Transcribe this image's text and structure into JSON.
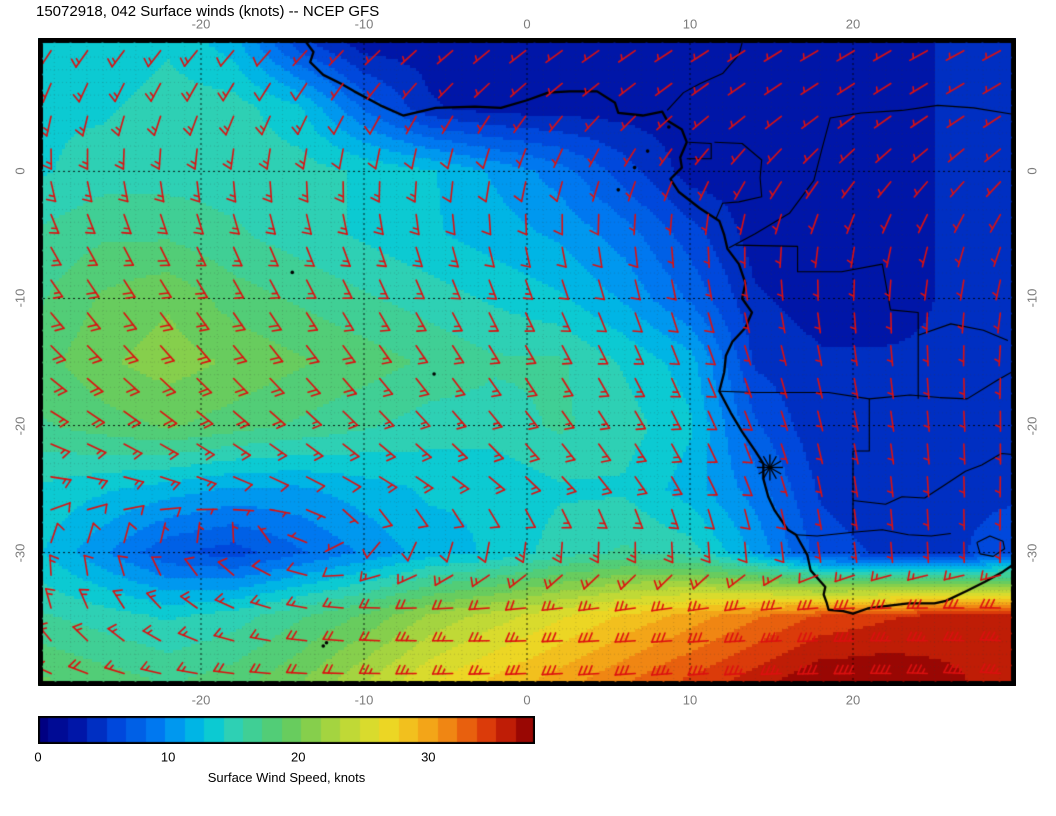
{
  "page": {
    "title": "15072918, 042 Surface winds (knots) -- NCEP GFS"
  },
  "chart_data": {
    "type": "heatmap",
    "title": "15072918, 042 Surface winds (knots) -- NCEP GFS",
    "projection": "lat-lon",
    "lon_range": [
      -30,
      30
    ],
    "lat_range": [
      -40.5,
      10.5
    ],
    "lon_ticks": [
      -20,
      -10,
      0,
      10,
      20
    ],
    "lat_ticks": [
      0,
      -10,
      -20,
      -30
    ],
    "tick_label_color": "#7b7b7b",
    "grid_lons": [
      -30,
      -26,
      -22,
      -18,
      -14,
      -10,
      -6,
      -2,
      2,
      6,
      10,
      14,
      18,
      22,
      26,
      30
    ],
    "grid_lats": [
      10,
      5,
      0,
      -5,
      -10,
      -15,
      -20,
      -25,
      -30,
      -35,
      -40
    ],
    "speed_knots": [
      [
        13,
        13,
        14,
        12,
        6,
        3,
        3,
        3,
        3,
        3,
        3,
        3,
        3,
        3,
        4,
        4
      ],
      [
        14,
        14,
        15,
        15,
        13,
        8,
        4,
        3,
        3,
        3,
        3,
        3,
        3,
        3,
        4,
        4
      ],
      [
        14,
        15,
        15,
        15,
        15,
        14,
        13,
        11,
        9,
        6,
        3,
        3,
        3,
        3,
        4,
        4
      ],
      [
        16,
        17,
        17,
        16,
        15,
        14,
        13,
        12,
        11,
        9,
        6,
        3,
        3,
        3,
        4,
        4
      ],
      [
        17,
        19,
        20,
        18,
        17,
        16,
        15,
        14,
        13,
        11,
        8,
        4,
        3,
        3,
        4,
        4
      ],
      [
        18,
        20,
        21,
        20,
        19,
        18,
        17,
        16,
        16,
        14,
        12,
        5,
        4,
        4,
        4,
        5
      ],
      [
        17,
        18,
        19,
        18,
        17,
        16,
        15,
        15,
        16,
        15,
        13,
        7,
        4,
        4,
        5,
        5
      ],
      [
        14,
        13,
        12,
        11,
        11,
        12,
        13,
        13,
        14,
        14,
        12,
        9,
        5,
        4,
        5,
        5
      ],
      [
        13,
        10,
        7,
        6,
        8,
        10,
        12,
        13,
        15,
        16,
        15,
        11,
        6,
        5,
        5,
        6
      ],
      [
        16,
        15,
        14,
        15,
        17,
        19,
        22,
        24,
        26,
        28,
        30,
        32,
        34,
        35,
        36,
        36
      ],
      [
        19,
        18,
        17,
        18,
        20,
        23,
        26,
        28,
        30,
        32,
        34,
        36,
        38,
        38,
        37,
        36
      ]
    ],
    "direction_toward_deg": [
      [
        35,
        38,
        40,
        42,
        45,
        48,
        50,
        52,
        55,
        56,
        58,
        58,
        60,
        60,
        62,
        62
      ],
      [
        15,
        18,
        22,
        26,
        30,
        35,
        40,
        44,
        48,
        50,
        52,
        54,
        55,
        56,
        58,
        58
      ],
      [
        350,
        352,
        355,
        358,
        0,
        4,
        8,
        14,
        20,
        26,
        32,
        36,
        40,
        44,
        46,
        48
      ],
      [
        332,
        334,
        336,
        338,
        340,
        343,
        346,
        349,
        352,
        356,
        0,
        5,
        10,
        14,
        18,
        22
      ],
      [
        322,
        324,
        326,
        328,
        330,
        332,
        334,
        336,
        338,
        342,
        346,
        350,
        355,
        0,
        5,
        10
      ],
      [
        312,
        314,
        316,
        318,
        320,
        322,
        324,
        327,
        330,
        334,
        338,
        343,
        348,
        353,
        358,
        3
      ],
      [
        298,
        302,
        305,
        308,
        310,
        313,
        316,
        319,
        323,
        328,
        334,
        340,
        346,
        351,
        356,
        0
      ],
      [
        272,
        277,
        282,
        287,
        292,
        297,
        302,
        308,
        315,
        323,
        332,
        341,
        349,
        354,
        358,
        2
      ],
      [
        188,
        182,
        174,
        158,
        120,
        60,
        32,
        20,
        12,
        6,
        0,
        356,
        352,
        355,
        358,
        2
      ],
      [
        165,
        150,
        132,
        112,
        100,
        95,
        92,
        90,
        88,
        87,
        86,
        86,
        87,
        89,
        91,
        93
      ],
      [
        112,
        106,
        100,
        96,
        93,
        91,
        89,
        88,
        87,
        86,
        86,
        87,
        89,
        91,
        93,
        95
      ]
    ],
    "colormap": [
      [
        0,
        "#000082"
      ],
      [
        3,
        "#0016a8"
      ],
      [
        6,
        "#0048dc"
      ],
      [
        9,
        "#0078f0"
      ],
      [
        11,
        "#00a2ee"
      ],
      [
        13,
        "#00c8dc"
      ],
      [
        15,
        "#2ed0b4"
      ],
      [
        17,
        "#46cf8a"
      ],
      [
        19,
        "#5ecb64"
      ],
      [
        21,
        "#86cf4c"
      ],
      [
        23,
        "#aed63c"
      ],
      [
        25,
        "#d2dc30"
      ],
      [
        27,
        "#ecd624"
      ],
      [
        29,
        "#f4b81c"
      ],
      [
        31,
        "#f29214"
      ],
      [
        33,
        "#e8600e"
      ],
      [
        35,
        "#d62f08"
      ],
      [
        37,
        "#a80b04"
      ],
      [
        38.5,
        "#7c0000"
      ]
    ],
    "colorbar": {
      "min": 0,
      "max": 38.2,
      "ticks": [
        0,
        10,
        20,
        30
      ],
      "label": "Surface Wind Speed, knots"
    },
    "wind_barbs": {
      "color": "#dc1010",
      "lon_start": -29.2,
      "lon_step": 2.24,
      "cols": 27,
      "lat_start": 9.5,
      "lat_step": 2.58,
      "rows": 20
    },
    "coastline": [
      [
        -13.8,
        10.6
      ],
      [
        -13.1,
        9.4
      ],
      [
        -13.3,
        8.6
      ],
      [
        -12.5,
        7.6
      ],
      [
        -11.4,
        6.9
      ],
      [
        -10.6,
        6.3
      ],
      [
        -9.0,
        5.2
      ],
      [
        -7.6,
        4.4
      ],
      [
        -5.6,
        5.0
      ],
      [
        -3.2,
        5.1
      ],
      [
        -1.6,
        5.0
      ],
      [
        0.0,
        5.6
      ],
      [
        1.3,
        6.2
      ],
      [
        2.6,
        6.3
      ],
      [
        4.3,
        6.3
      ],
      [
        5.4,
        5.4
      ],
      [
        5.6,
        4.6
      ],
      [
        7.1,
        4.4
      ],
      [
        8.3,
        4.7
      ],
      [
        8.6,
        4.0
      ],
      [
        9.5,
        3.3
      ],
      [
        9.8,
        2.3
      ],
      [
        9.4,
        1.1
      ],
      [
        9.5,
        0.3
      ],
      [
        8.8,
        -0.6
      ],
      [
        9.3,
        -1.6
      ],
      [
        10.6,
        -2.9
      ],
      [
        11.8,
        -3.9
      ],
      [
        12.1,
        -5.0
      ],
      [
        12.3,
        -6.1
      ],
      [
        13.0,
        -7.3
      ],
      [
        13.4,
        -8.8
      ],
      [
        13.2,
        -10.0
      ],
      [
        13.8,
        -11.1
      ],
      [
        13.4,
        -12.3
      ],
      [
        12.6,
        -13.4
      ],
      [
        12.2,
        -14.5
      ],
      [
        12.1,
        -15.8
      ],
      [
        11.8,
        -17.3
      ],
      [
        12.5,
        -19.0
      ],
      [
        13.2,
        -20.5
      ],
      [
        14.0,
        -22.0
      ],
      [
        14.5,
        -23.0
      ],
      [
        14.5,
        -24.2
      ],
      [
        14.8,
        -25.6
      ],
      [
        15.2,
        -26.7
      ],
      [
        16.0,
        -28.2
      ],
      [
        16.5,
        -28.6
      ],
      [
        17.2,
        -30.2
      ],
      [
        17.4,
        -31.4
      ],
      [
        18.3,
        -32.7
      ],
      [
        18.2,
        -33.3
      ],
      [
        18.4,
        -34.0
      ],
      [
        18.5,
        -34.5
      ],
      [
        19.4,
        -34.6
      ],
      [
        20.0,
        -34.8
      ],
      [
        20.9,
        -34.4
      ],
      [
        22.1,
        -34.2
      ],
      [
        23.4,
        -34.0
      ],
      [
        25.0,
        -34.0
      ],
      [
        25.7,
        -33.8
      ],
      [
        27.0,
        -33.0
      ],
      [
        28.1,
        -32.3
      ],
      [
        29.2,
        -31.5
      ],
      [
        30.0,
        -30.8
      ]
    ],
    "borders": [
      [
        [
          8.6,
          4.8
        ],
        [
          9.6,
          6.2
        ],
        [
          10.6,
          6.9
        ],
        [
          12.0,
          7.7
        ],
        [
          13.0,
          9.2
        ],
        [
          13.3,
          10.6
        ]
      ],
      [
        [
          9.8,
          1.0
        ],
        [
          11.3,
          1.0
        ],
        [
          11.3,
          2.2
        ],
        [
          9.9,
          2.3
        ]
      ],
      [
        [
          11.5,
          2.3
        ],
        [
          13.2,
          2.2
        ],
        [
          14.4,
          0.9
        ],
        [
          14.3,
          -0.5
        ],
        [
          14.4,
          -2.0
        ],
        [
          13.0,
          -2.4
        ],
        [
          12.0,
          -2.5
        ],
        [
          11.6,
          -3.7
        ]
      ],
      [
        [
          12.4,
          -6.0
        ],
        [
          14.0,
          -4.9
        ],
        [
          16.1,
          -3.3
        ],
        [
          17.6,
          -0.7
        ],
        [
          18.1,
          1.8
        ],
        [
          18.6,
          4.2
        ],
        [
          20.5,
          4.6
        ],
        [
          23.0,
          4.8
        ],
        [
          25.2,
          5.2
        ],
        [
          27.4,
          5.0
        ],
        [
          29.8,
          4.5
        ]
      ],
      [
        [
          12.8,
          -5.8
        ],
        [
          16.6,
          -5.9
        ],
        [
          16.6,
          -7.9
        ],
        [
          19.3,
          -7.9
        ],
        [
          21.8,
          -7.3
        ],
        [
          22.3,
          -10.9
        ],
        [
          24.0,
          -11.1
        ],
        [
          24.0,
          -12.9
        ]
      ],
      [
        [
          24.0,
          -12.9
        ],
        [
          26.0,
          -12.0
        ],
        [
          28.0,
          -12.5
        ],
        [
          29.5,
          -13.3
        ]
      ],
      [
        [
          24.0,
          -12.9
        ],
        [
          24.0,
          -17.9
        ]
      ],
      [
        [
          11.8,
          -17.3
        ],
        [
          14.0,
          -17.4
        ],
        [
          18.5,
          -17.4
        ],
        [
          21.0,
          -17.9
        ],
        [
          23.5,
          -17.6
        ],
        [
          25.3,
          -17.8
        ]
      ],
      [
        [
          25.3,
          -17.8
        ],
        [
          27.0,
          -17.9
        ],
        [
          28.9,
          -16.4
        ],
        [
          30.0,
          -15.6
        ]
      ],
      [
        [
          21.0,
          -17.9
        ],
        [
          21.0,
          -22.0
        ],
        [
          20.0,
          -22.0
        ],
        [
          20.0,
          -28.4
        ]
      ],
      [
        [
          16.5,
          -28.6
        ],
        [
          17.8,
          -28.7
        ],
        [
          20.0,
          -28.4
        ],
        [
          21.8,
          -28.2
        ],
        [
          23.4,
          -28.6
        ],
        [
          24.8,
          -28.7
        ],
        [
          26.0,
          -28.5
        ]
      ],
      [
        [
          20.0,
          -25.9
        ],
        [
          22.0,
          -26.2
        ],
        [
          23.0,
          -25.6
        ],
        [
          24.4,
          -25.7
        ],
        [
          25.6,
          -24.7
        ],
        [
          26.9,
          -23.6
        ],
        [
          27.9,
          -23.1
        ],
        [
          29.1,
          -22.2
        ],
        [
          30.0,
          -22.3
        ]
      ],
      [
        [
          27.6,
          -29.2
        ],
        [
          28.4,
          -28.7
        ],
        [
          29.2,
          -29.1
        ],
        [
          29.3,
          -29.7
        ],
        [
          28.6,
          -30.3
        ],
        [
          27.8,
          -30.1
        ],
        [
          27.6,
          -29.2
        ]
      ]
    ],
    "islands": [
      [
        8.7,
        3.5
      ],
      [
        7.4,
        1.6
      ],
      [
        6.6,
        0.3
      ],
      [
        5.6,
        -1.45
      ],
      [
        -14.4,
        -7.95
      ],
      [
        -5.7,
        -15.95
      ],
      [
        -12.3,
        -37.1
      ],
      [
        -12.5,
        -37.35
      ],
      [
        -9.9,
        -40.3
      ]
    ],
    "marker": {
      "lon": 14.9,
      "lat": -23.3,
      "shape": "asterisk",
      "color": "#000000"
    }
  }
}
